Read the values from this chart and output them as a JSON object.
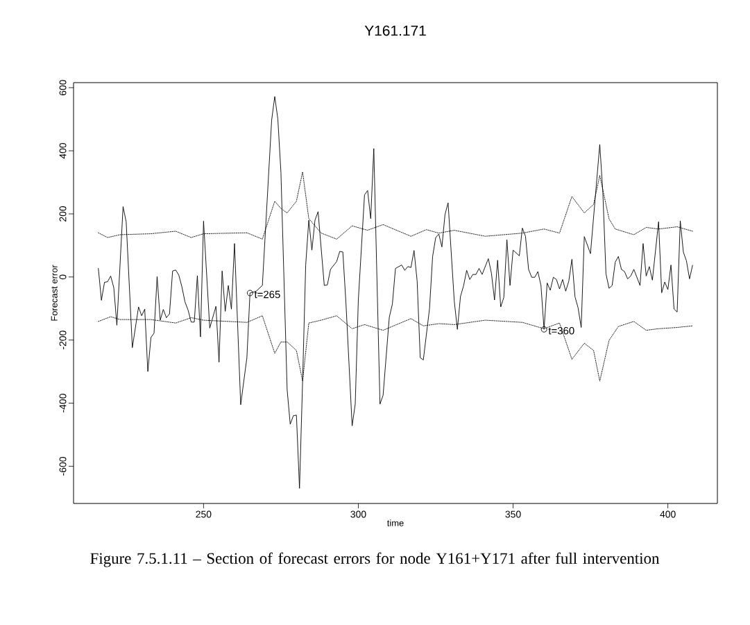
{
  "chart_data": {
    "type": "line",
    "title": "Y161.171",
    "xlabel": "time",
    "ylabel": "Forecast error",
    "xlim": [
      208,
      416
    ],
    "ylim": [
      -718,
      616
    ],
    "xticks": [
      250,
      300,
      350,
      400
    ],
    "yticks": [
      -600,
      -400,
      -200,
      0,
      200,
      400,
      600
    ],
    "line_style": "solid",
    "marker": "none",
    "series": [
      {
        "color": "#000000",
        "x": [
          216,
          217,
          218,
          219,
          220,
          221,
          222,
          224,
          225,
          227,
          229,
          230,
          231,
          232,
          233,
          234,
          235,
          236,
          237,
          238,
          239,
          240,
          241,
          242,
          243,
          244,
          245,
          246,
          247,
          248,
          249,
          250,
          252,
          254,
          255,
          256,
          257,
          258,
          259,
          260,
          262,
          264,
          265,
          267,
          269,
          272,
          273,
          274,
          275,
          277,
          278,
          279,
          280,
          281,
          282,
          283,
          284,
          285,
          286,
          287,
          289,
          290,
          291,
          293,
          294,
          295,
          296,
          298,
          299,
          300,
          302,
          303,
          304,
          305,
          307,
          308,
          310,
          311,
          312,
          314,
          315,
          316,
          317,
          318,
          319,
          320,
          321,
          323,
          324,
          325,
          326,
          327,
          328,
          329,
          331,
          332,
          333,
          334,
          335,
          336,
          337,
          338,
          339,
          340,
          342,
          343,
          344,
          345,
          346,
          347,
          348,
          349,
          350,
          352,
          353,
          354,
          355,
          356,
          357,
          358,
          359,
          360,
          361,
          362,
          363,
          364,
          365,
          366,
          367,
          368,
          369,
          370,
          371,
          372,
          373,
          375,
          378,
          379,
          380,
          381,
          382,
          383,
          384,
          385,
          386,
          387,
          388,
          389,
          390,
          391,
          392,
          393,
          394,
          395,
          397,
          398,
          399,
          400,
          401,
          402,
          403,
          404,
          405,
          406,
          407,
          408
        ],
        "values": [
          28,
          -74,
          -17,
          -15,
          3,
          -34,
          -153,
          223,
          175,
          -224,
          -95,
          -123,
          -102,
          -300,
          -192,
          -178,
          1,
          -137,
          -103,
          -129,
          -117,
          19,
          22,
          6,
          -31,
          -79,
          -105,
          -143,
          -143,
          4,
          -190,
          177,
          -162,
          -93,
          -270,
          19,
          -109,
          -27,
          -102,
          106,
          -405,
          -256,
          -51,
          -45,
          -27,
          497,
          572,
          501,
          331,
          -357,
          -467,
          -440,
          -438,
          -670,
          -330,
          38,
          180,
          85,
          180,
          207,
          -27,
          -25,
          24,
          49,
          81,
          79,
          -82,
          -472,
          -403,
          -73,
          260,
          274,
          185,
          407,
          -403,
          -375,
          -128,
          -86,
          27,
          38,
          21,
          33,
          30,
          84,
          -13,
          -256,
          -263,
          -100,
          65,
          125,
          136,
          95,
          198,
          235,
          -77,
          -166,
          -62,
          -28,
          21,
          -8,
          8,
          8,
          27,
          8,
          58,
          12,
          -73,
          53,
          -95,
          -65,
          118,
          -27,
          85,
          67,
          155,
          129,
          24,
          -1,
          -1,
          17,
          -27,
          -166,
          -19,
          -42,
          -1,
          -8,
          -38,
          -8,
          -45,
          -13,
          56,
          -63,
          -98,
          -160,
          128,
          74,
          420,
          267,
          10,
          -36,
          -27,
          47,
          65,
          24,
          17,
          -6,
          3,
          24,
          -1,
          -27,
          106,
          3,
          33,
          -10,
          175,
          -50,
          -16,
          -40,
          38,
          -102,
          -111,
          178,
          79,
          51,
          -6,
          38
        ]
      },
      {
        "color": "#000000",
        "line_style": "dotted",
        "x": [
          216,
          219,
          223,
          233,
          241,
          246,
          250,
          264,
          269,
          273,
          275,
          277,
          280,
          282,
          284,
          288,
          293,
          298,
          303,
          308,
          317,
          322,
          326,
          331,
          341,
          353,
          360,
          365,
          369,
          373,
          376,
          378,
          381,
          383,
          389,
          393,
          397,
          403,
          408
        ],
        "values": [
          140,
          125,
          134,
          137,
          145,
          125,
          137,
          140,
          120,
          240,
          217,
          203,
          240,
          333,
          185,
          139,
          120,
          162,
          148,
          166,
          129,
          150,
          139,
          148,
          129,
          139,
          152,
          139,
          255,
          203,
          230,
          322,
          184,
          152,
          134,
          157,
          152,
          159,
          145
        ]
      },
      {
        "color": "#000000",
        "line_style": "dotted",
        "x": [
          216,
          220,
          223,
          233,
          241,
          246,
          250,
          264,
          269,
          273,
          275,
          277,
          280,
          282,
          284,
          288,
          293,
          298,
          302,
          308,
          317,
          321,
          326,
          331,
          341,
          353,
          360,
          365,
          369,
          373,
          376,
          378,
          381,
          384,
          389,
          393,
          397,
          403,
          408
        ],
        "values": [
          -141,
          -126,
          -135,
          -135,
          -146,
          -129,
          -137,
          -144,
          -123,
          -242,
          -206,
          -206,
          -233,
          -330,
          -146,
          -137,
          -123,
          -164,
          -151,
          -169,
          -132,
          -155,
          -148,
          -151,
          -137,
          -144,
          -164,
          -146,
          -261,
          -210,
          -233,
          -330,
          -201,
          -157,
          -141,
          -169,
          -164,
          -160,
          -155
        ]
      },
      {
        "type": "scatter",
        "marker": "circle",
        "color": "#000000",
        "x": [
          265,
          360
        ],
        "values": [
          -51,
          -166
        ]
      }
    ],
    "annotations": [
      {
        "text": "t=265",
        "x": 265,
        "y": -51
      },
      {
        "text": "t=360",
        "x": 360,
        "y": -166
      },
      "Figure 7.5.1.11 – Section of forecast errors for node Y161+Y171 after full intervention"
    ]
  }
}
